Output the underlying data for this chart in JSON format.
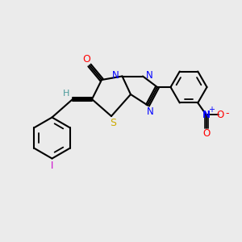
{
  "bg_color": "#ebebeb",
  "bond_color": "#000000",
  "atom_colors": {
    "O": "#ff0000",
    "N": "#0000ff",
    "S": "#ccaa00",
    "I": "#cc00cc",
    "H": "#4a9a9a",
    "C": "#000000",
    "plus": "#0000ff",
    "minus": "#ff0000"
  },
  "figsize": [
    3.0,
    3.0
  ],
  "dpi": 100
}
